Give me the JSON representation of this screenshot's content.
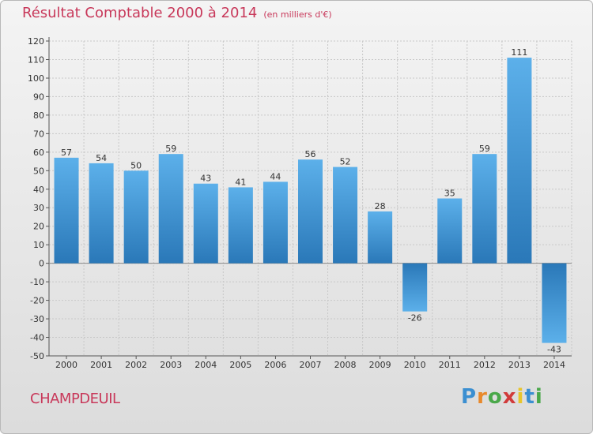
{
  "title": "Résultat Comptable 2000 à 2014",
  "subtitle": "(en milliers d'€)",
  "commune": "CHAMPDEUIL",
  "brand": [
    "P",
    "r",
    "o",
    "x",
    "i",
    "t",
    "i"
  ],
  "colors": {
    "bar_light": "#5aaee8",
    "bar_dark": "#2a78b8",
    "title": "#c8385a"
  },
  "chart_data": {
    "type": "bar",
    "title": "Résultat Comptable 2000 à 2014",
    "categories": [
      "2000",
      "2001",
      "2002",
      "2003",
      "2004",
      "2005",
      "2006",
      "2007",
      "2008",
      "2009",
      "2010",
      "2011",
      "2012",
      "2013",
      "2014"
    ],
    "values": [
      57,
      54,
      50,
      59,
      43,
      41,
      44,
      56,
      52,
      28,
      -26,
      35,
      59,
      111,
      -43
    ],
    "ylim": [
      -50,
      120
    ],
    "yticks": [
      120,
      110,
      100,
      90,
      80,
      70,
      60,
      50,
      40,
      30,
      20,
      10,
      0,
      -10,
      -20,
      -30,
      -40,
      -50
    ],
    "grid": true
  }
}
